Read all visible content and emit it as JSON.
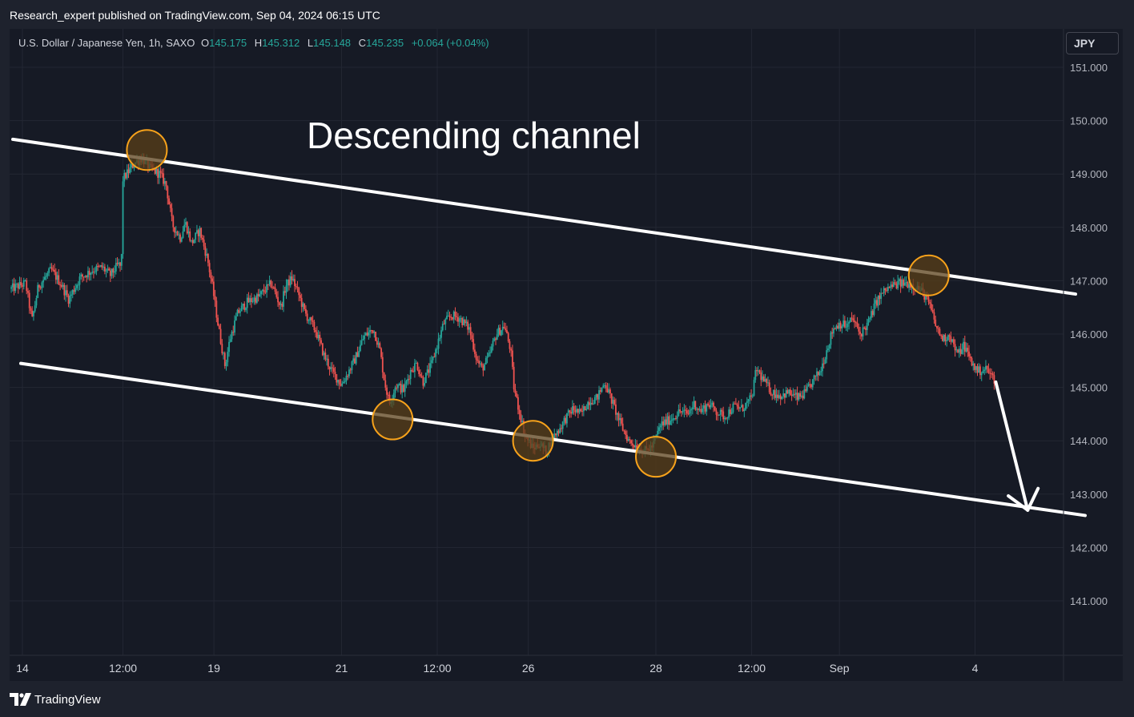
{
  "header": {
    "published": "Research_expert published on TradingView.com, Sep 04, 2024 06:15 UTC"
  },
  "legend": {
    "symbol": "U.S. Dollar / Japanese Yen, 1h, SAXO",
    "open_label": "O",
    "open": "145.175",
    "high_label": "H",
    "high": "145.312",
    "low_label": "L",
    "low": "145.148",
    "close_label": "C",
    "close": "145.235",
    "change": "+0.064 (+0.04%)"
  },
  "currency": "JPY",
  "annotation": "Descending channel",
  "footer": {
    "brand": "TradingView"
  },
  "colors": {
    "background": "#161a25",
    "grid": "#232733",
    "up": "#26a69a",
    "down": "#ef5350",
    "channel": "#ffffff",
    "marker_fill": "#5a3f18",
    "marker_stroke": "#f7a21b"
  },
  "chart_data": {
    "type": "candlestick",
    "instrument": "U.S. Dollar / Japanese Yen",
    "interval": "1h",
    "ylim": [
      140.0,
      151.6
    ],
    "y_ticks": [
      "151.000",
      "150.000",
      "149.000",
      "148.000",
      "147.000",
      "146.000",
      "145.000",
      "144.000",
      "143.000",
      "142.000",
      "141.000"
    ],
    "y_tick_values": [
      151,
      150,
      149,
      148,
      147,
      146,
      145,
      144,
      143,
      142,
      141
    ],
    "x_ticks": [
      {
        "label": "14",
        "t": 0.0
      },
      {
        "label": "12:00",
        "t": 3.15
      },
      {
        "label": "19",
        "t": 6.0
      },
      {
        "label": "21",
        "t": 10.0
      },
      {
        "label": "12:00",
        "t": 13.0
      },
      {
        "label": "26",
        "t": 15.85
      },
      {
        "label": "28",
        "t": 19.85
      },
      {
        "label": "12:00",
        "t": 22.85
      },
      {
        "label": "Sep",
        "t": 25.6
      },
      {
        "label": "4",
        "t": 29.85
      }
    ],
    "t_range": [
      -0.4,
      32.8
    ],
    "price_path": [
      [
        -0.35,
        146.85
      ],
      [
        0.1,
        146.95
      ],
      [
        0.3,
        146.25
      ],
      [
        0.5,
        146.9
      ],
      [
        0.9,
        147.2
      ],
      [
        1.2,
        146.95
      ],
      [
        1.45,
        146.65
      ],
      [
        1.8,
        147.05
      ],
      [
        2.2,
        147.2
      ],
      [
        2.5,
        147.25
      ],
      [
        2.75,
        147.1
      ],
      [
        3.0,
        147.3
      ],
      [
        3.1,
        147.25
      ],
      [
        3.15,
        148.9
      ],
      [
        3.5,
        149.2
      ],
      [
        3.75,
        149.3
      ],
      [
        4.0,
        149.1
      ],
      [
        4.3,
        149.0
      ],
      [
        4.5,
        148.8
      ],
      [
        4.7,
        148.05
      ],
      [
        4.95,
        147.8
      ],
      [
        5.1,
        148.1
      ],
      [
        5.3,
        147.7
      ],
      [
        5.55,
        147.95
      ],
      [
        5.8,
        147.4
      ],
      [
        5.95,
        146.9
      ],
      [
        6.15,
        146.1
      ],
      [
        6.35,
        145.4
      ],
      [
        6.5,
        145.9
      ],
      [
        6.75,
        146.4
      ],
      [
        7.05,
        146.6
      ],
      [
        7.4,
        146.7
      ],
      [
        7.8,
        146.95
      ],
      [
        8.1,
        146.5
      ],
      [
        8.25,
        146.9
      ],
      [
        8.45,
        147.05
      ],
      [
        8.65,
        146.75
      ],
      [
        8.85,
        146.4
      ],
      [
        9.05,
        146.2
      ],
      [
        9.2,
        146.05
      ],
      [
        9.45,
        145.6
      ],
      [
        9.7,
        145.3
      ],
      [
        10.0,
        145.05
      ],
      [
        10.4,
        145.5
      ],
      [
        10.7,
        145.95
      ],
      [
        11.0,
        146.1
      ],
      [
        11.2,
        145.7
      ],
      [
        11.35,
        145.1
      ],
      [
        11.5,
        144.7
      ],
      [
        11.7,
        145.05
      ],
      [
        11.95,
        144.95
      ],
      [
        12.15,
        145.3
      ],
      [
        12.35,
        145.45
      ],
      [
        12.55,
        145.1
      ],
      [
        12.8,
        145.4
      ],
      [
        13.0,
        145.8
      ],
      [
        13.2,
        146.2
      ],
      [
        13.45,
        146.35
      ],
      [
        13.7,
        146.3
      ],
      [
        14.0,
        146.1
      ],
      [
        14.25,
        145.5
      ],
      [
        14.4,
        145.35
      ],
      [
        14.6,
        145.55
      ],
      [
        14.85,
        146.0
      ],
      [
        15.1,
        146.15
      ],
      [
        15.3,
        145.7
      ],
      [
        15.4,
        145.0
      ],
      [
        15.55,
        144.6
      ],
      [
        15.75,
        144.1
      ],
      [
        16.0,
        143.85
      ],
      [
        16.2,
        143.95
      ],
      [
        16.4,
        143.8
      ],
      [
        16.6,
        144.05
      ],
      [
        16.8,
        144.2
      ],
      [
        17.0,
        144.4
      ],
      [
        17.25,
        144.6
      ],
      [
        17.5,
        144.5
      ],
      [
        17.75,
        144.75
      ],
      [
        18.0,
        144.8
      ],
      [
        18.25,
        145.1
      ],
      [
        18.5,
        144.7
      ],
      [
        18.75,
        144.3
      ],
      [
        19.0,
        144.0
      ],
      [
        19.25,
        143.9
      ],
      [
        19.5,
        143.8
      ],
      [
        19.75,
        143.9
      ],
      [
        20.0,
        144.3
      ],
      [
        20.3,
        144.4
      ],
      [
        20.6,
        144.55
      ],
      [
        20.85,
        144.5
      ],
      [
        21.05,
        144.7
      ],
      [
        21.25,
        144.55
      ],
      [
        21.5,
        144.7
      ],
      [
        21.75,
        144.55
      ],
      [
        22.0,
        144.45
      ],
      [
        22.3,
        144.65
      ],
      [
        22.55,
        144.6
      ],
      [
        22.85,
        144.8
      ],
      [
        23.0,
        145.35
      ],
      [
        23.25,
        145.1
      ],
      [
        23.5,
        144.9
      ],
      [
        23.75,
        144.85
      ],
      [
        24.0,
        144.9
      ],
      [
        24.3,
        144.8
      ],
      [
        24.55,
        144.9
      ],
      [
        24.8,
        145.15
      ],
      [
        25.0,
        145.3
      ],
      [
        25.2,
        145.7
      ],
      [
        25.4,
        146.1
      ],
      [
        25.6,
        146.2
      ],
      [
        25.85,
        146.15
      ],
      [
        26.0,
        146.3
      ],
      [
        26.25,
        146.0
      ],
      [
        26.5,
        146.2
      ],
      [
        26.75,
        146.6
      ],
      [
        27.0,
        146.8
      ],
      [
        27.25,
        146.9
      ],
      [
        27.5,
        146.95
      ],
      [
        27.75,
        146.95
      ],
      [
        28.0,
        146.9
      ],
      [
        28.25,
        146.75
      ],
      [
        28.45,
        146.5
      ],
      [
        28.65,
        146.1
      ],
      [
        28.85,
        145.9
      ],
      [
        29.05,
        146.0
      ],
      [
        29.3,
        145.6
      ],
      [
        29.5,
        145.8
      ],
      [
        29.75,
        145.45
      ],
      [
        29.95,
        145.3
      ],
      [
        30.2,
        145.35
      ],
      [
        30.45,
        145.15
      ]
    ],
    "channel_lines": [
      {
        "points": [
          [
            -0.3,
            149.65
          ],
          [
            33.0,
            146.75
          ]
        ]
      },
      {
        "points": [
          [
            -0.05,
            145.45
          ],
          [
            33.3,
            142.6
          ]
        ]
      }
    ],
    "touch_points": [
      [
        3.9,
        149.45
      ],
      [
        11.6,
        144.4
      ],
      [
        16.0,
        144.0
      ],
      [
        19.85,
        143.7
      ],
      [
        28.4,
        147.1
      ]
    ],
    "projection_arrow": {
      "points": [
        [
          30.5,
          145.1
        ],
        [
          31.5,
          142.7
        ]
      ]
    }
  }
}
